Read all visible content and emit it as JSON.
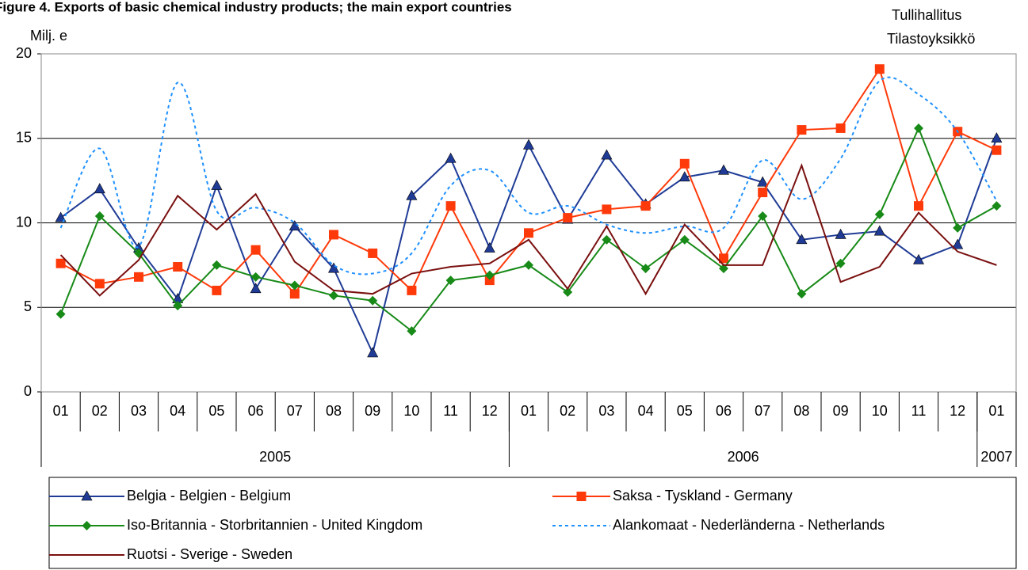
{
  "chart_data": {
    "type": "line",
    "title": "Figure 4. Exports of basic chemical industry products; the main export countries",
    "source": [
      "Tullihallitus",
      "Tilastoyksikkö"
    ],
    "y_label": "Milj. e",
    "categories": [
      "01",
      "02",
      "03",
      "04",
      "05",
      "06",
      "07",
      "08",
      "09",
      "10",
      "11",
      "12",
      "01",
      "02",
      "03",
      "04",
      "05",
      "06",
      "07",
      "08",
      "09",
      "10",
      "11",
      "12",
      "01"
    ],
    "groups": [
      {
        "label": "2005",
        "span": 12
      },
      {
        "label": "2006",
        "span": 12
      },
      {
        "label": "2007",
        "span": 1
      }
    ],
    "ylim": [
      0,
      20
    ],
    "yticks": [
      0,
      5,
      10,
      15,
      20
    ],
    "grid": true,
    "legend": "bottom",
    "series": [
      {
        "name": "Belgia - Belgien - Belgium",
        "color": "#1f3b96",
        "marker": "triangle",
        "line_style": "solid",
        "values": [
          10.3,
          12.0,
          8.5,
          5.5,
          12.2,
          6.1,
          9.8,
          7.3,
          2.3,
          11.6,
          13.8,
          8.5,
          14.6,
          10.2,
          14.0,
          11.1,
          12.7,
          13.1,
          12.4,
          9.0,
          9.3,
          9.5,
          7.8,
          8.7,
          15.0
        ]
      },
      {
        "name": "Saksa - Tyskland - Germany",
        "color": "#ff3a0a",
        "marker": "square",
        "line_style": "solid",
        "values": [
          7.6,
          6.4,
          6.8,
          7.4,
          6.0,
          8.4,
          5.8,
          9.3,
          8.2,
          6.0,
          11.0,
          6.6,
          9.4,
          10.3,
          10.8,
          11.0,
          13.5,
          7.9,
          11.8,
          15.5,
          15.6,
          19.1,
          11.0,
          15.4,
          14.3
        ]
      },
      {
        "name": "Iso-Britannia - Storbritannien - United Kingdom",
        "color": "#178a17",
        "marker": "diamond",
        "line_style": "solid",
        "values": [
          4.6,
          10.4,
          8.2,
          5.1,
          7.5,
          6.8,
          6.3,
          5.7,
          5.4,
          3.6,
          6.6,
          6.9,
          7.5,
          5.9,
          9.0,
          7.3,
          9.0,
          7.3,
          10.4,
          5.8,
          7.6,
          10.5,
          15.6,
          9.7,
          11.0
        ]
      },
      {
        "name": "Alankomaat - Nederländerna - Netherlands",
        "color": "#1e90ff",
        "marker": "none",
        "line_style": "dotted",
        "values": [
          9.7,
          14.4,
          8.6,
          18.3,
          10.7,
          10.9,
          10.0,
          7.5,
          7.0,
          8.2,
          12.2,
          13.1,
          10.6,
          11.0,
          9.9,
          9.4,
          9.8,
          9.7,
          13.7,
          11.4,
          13.8,
          18.4,
          17.6,
          15.4,
          11.3
        ]
      },
      {
        "name": "Ruotsi - Sverige - Sweden",
        "color": "#7a1010",
        "marker": "none",
        "line_style": "solid",
        "values": [
          8.1,
          5.7,
          7.8,
          11.6,
          9.6,
          11.7,
          7.7,
          6.0,
          5.8,
          7.0,
          7.4,
          7.6,
          9.0,
          6.1,
          9.8,
          5.8,
          9.9,
          7.5,
          7.5,
          13.4,
          6.5,
          7.4,
          10.6,
          8.3,
          7.5
        ]
      }
    ]
  }
}
